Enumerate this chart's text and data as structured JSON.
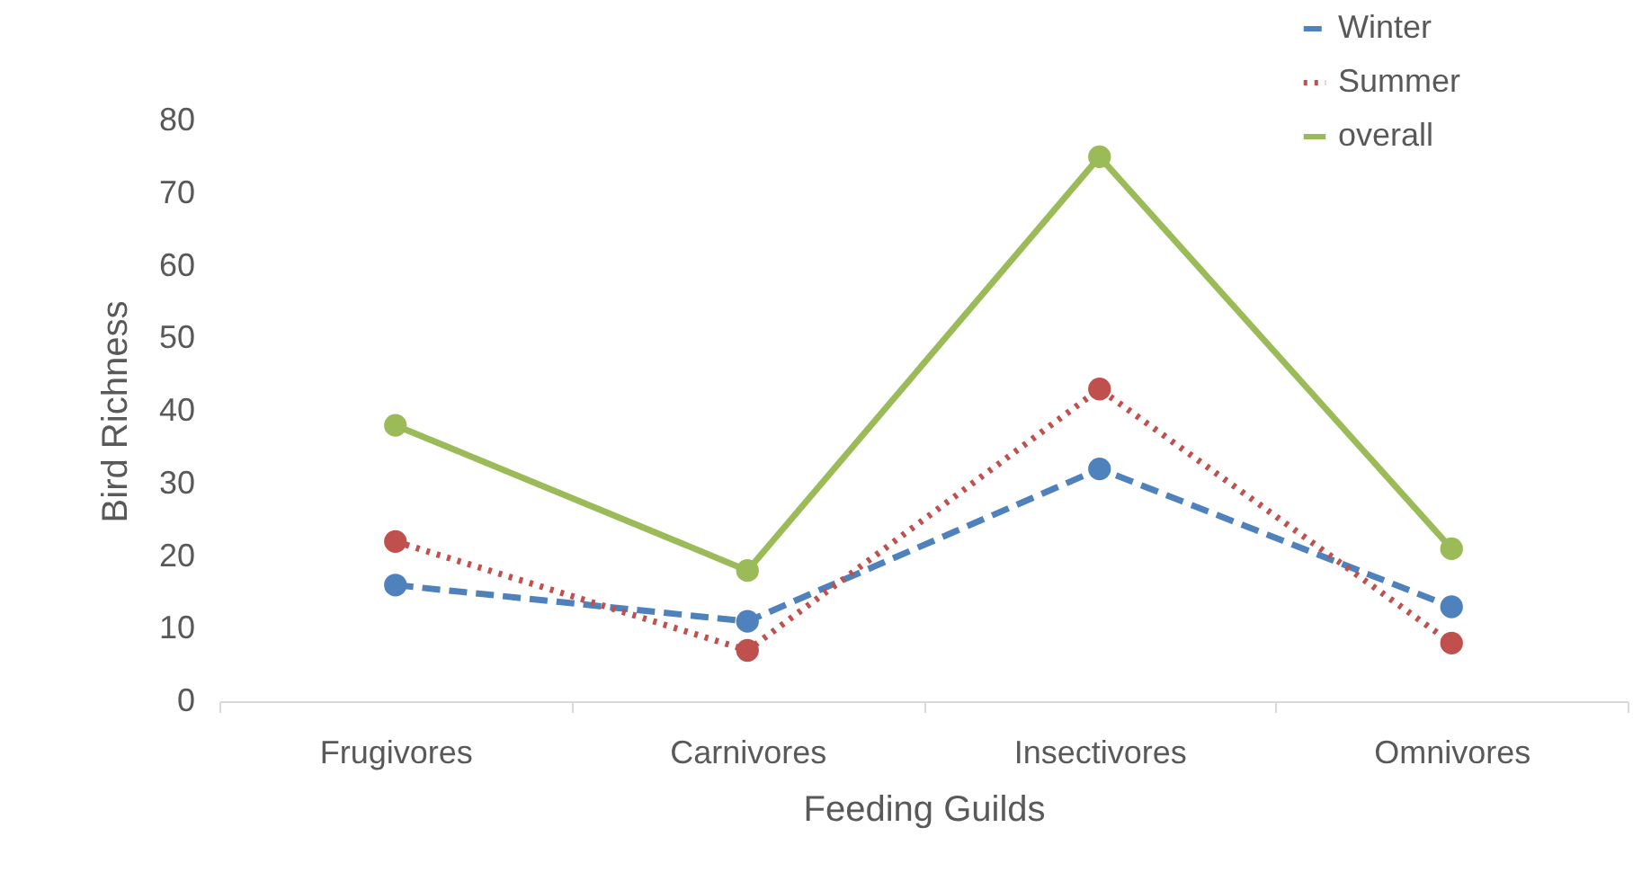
{
  "chart_data": {
    "type": "line",
    "xlabel": "Feeding Guilds",
    "ylabel": "Bird Richness",
    "categories": [
      "Frugivores",
      "Carnivores",
      "Insectivores",
      "Omnivores"
    ],
    "series": [
      {
        "name": "Winter",
        "color": "#4f81bd",
        "line_style": "dashed",
        "values": [
          16,
          11,
          32,
          13
        ]
      },
      {
        "name": "Summer",
        "color": "#c0504d",
        "line_style": "dotted",
        "values": [
          22,
          7,
          43,
          8
        ]
      },
      {
        "name": "overall",
        "color": "#9bbb59",
        "line_style": "solid",
        "values": [
          38,
          18,
          75,
          21
        ]
      }
    ],
    "ylim": [
      0,
      80
    ],
    "yticks": [
      0,
      10,
      20,
      30,
      40,
      50,
      60,
      70,
      80
    ],
    "grid": false,
    "legend": "top right",
    "marker": "circle"
  }
}
